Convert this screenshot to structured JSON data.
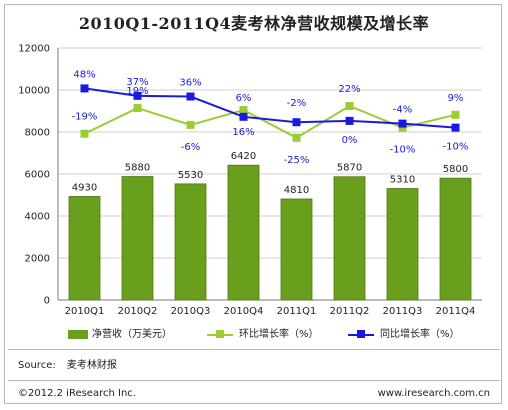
{
  "title": "2010Q1-2011Q4麦考林净营收规模及增长率",
  "source_label": "Source:",
  "source_text": "麦考林财报",
  "copyright": "©2012.2 iResearch Inc.",
  "website": "www.iresearch.com.cn",
  "colors": {
    "bar": "#6a9e1d",
    "bar_edge": "#4e7a10",
    "qoq_line": "#9acd32",
    "yoy_line": "#1a1adc",
    "pct_text": "#1a1adc",
    "grid": "#cfcfcf",
    "axis": "#777777"
  },
  "legend": {
    "revenue": "净营收（万美元）",
    "qoq": "环比增长率（%）",
    "yoy": "同比增长率（%）"
  },
  "chart_data": {
    "type": "bar",
    "title": "2010Q1-2011Q4麦考林净营收规模及增长率",
    "categories": [
      "2010Q1",
      "2010Q2",
      "2010Q3",
      "2010Q4",
      "2011Q1",
      "2011Q2",
      "2011Q3",
      "2011Q4"
    ],
    "y_ticks": [
      "0",
      "2000",
      "4000",
      "6000",
      "8000",
      "10000",
      "12000"
    ],
    "ylim": [
      0,
      12000
    ],
    "grid": true,
    "legend_position": "bottom",
    "series": [
      {
        "name": "净营收（万美元）",
        "kind": "bar",
        "values": [
          4930,
          5880,
          5530,
          6420,
          4810,
          5870,
          5310,
          5800
        ],
        "labels": [
          "4930",
          "5880",
          "5530",
          "6420",
          "4810",
          "5870",
          "5310",
          "5800"
        ]
      },
      {
        "name": "环比增长率（%）",
        "kind": "line",
        "values": [
          -19,
          19,
          -6,
          16,
          -25,
          22,
          -10,
          9
        ],
        "labels": [
          "-19%",
          "19%",
          "-6%",
          "16%",
          "-25%",
          "22%",
          "-10%",
          "9%"
        ]
      },
      {
        "name": "同比增长率（%）",
        "kind": "line",
        "values": [
          48,
          37,
          36,
          6,
          -2,
          0,
          -4,
          -10
        ],
        "labels": [
          "48%",
          "37%",
          "36%",
          "6%",
          "-2%",
          "0%",
          "-4%",
          "-10%"
        ]
      }
    ]
  }
}
